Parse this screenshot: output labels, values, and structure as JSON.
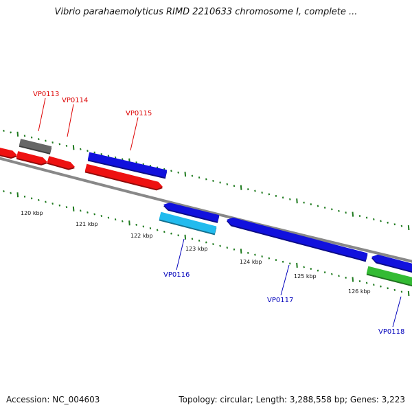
{
  "title": "Vibrio parahaemolyticus RIMD 2210633 chromosome I, complete ...",
  "footer": {
    "accession": "Accession: NC_004603",
    "summary": "Topology: circular; Length: 3,288,558 bp; Genes: 3,223"
  },
  "colors": {
    "backbone": "#888888",
    "tick": "#1e7a1e",
    "forward_label": "#dd0000",
    "reverse_label": "#0000bb"
  },
  "kbp_labels": [
    "120 kbp",
    "121 kbp",
    "122 kbp",
    "123 kbp",
    "124 kbp",
    "125 kbp",
    "126 kbp"
  ],
  "gene_labels": [
    {
      "text": "VP0113",
      "strand": "forward"
    },
    {
      "text": "VP0114",
      "strand": "forward"
    },
    {
      "text": "VP0115",
      "strand": "forward"
    },
    {
      "text": "VP0116",
      "strand": "reverse"
    },
    {
      "text": "VP0117",
      "strand": "reverse"
    },
    {
      "text": "VP0118",
      "strand": "reverse"
    }
  ],
  "features": [
    {
      "name": "feature-red-1",
      "color": "#ee1111"
    },
    {
      "name": "feature-red-2",
      "color": "#ee1111"
    },
    {
      "name": "feature-red-3",
      "color": "#ee1111"
    },
    {
      "name": "feature-grey",
      "color": "#666666"
    },
    {
      "name": "feature-blue-vp0115",
      "color": "#1111dd"
    },
    {
      "name": "feature-red-vp0115",
      "color": "#ee1111"
    },
    {
      "name": "feature-blue-vp0116",
      "color": "#1111dd"
    },
    {
      "name": "feature-cyan-vp0116",
      "color": "#22bbee"
    },
    {
      "name": "feature-blue-vp0117",
      "color": "#1111dd"
    },
    {
      "name": "feature-blue-vp0118",
      "color": "#1111dd"
    },
    {
      "name": "feature-green-vp0118",
      "color": "#33bb33"
    }
  ]
}
